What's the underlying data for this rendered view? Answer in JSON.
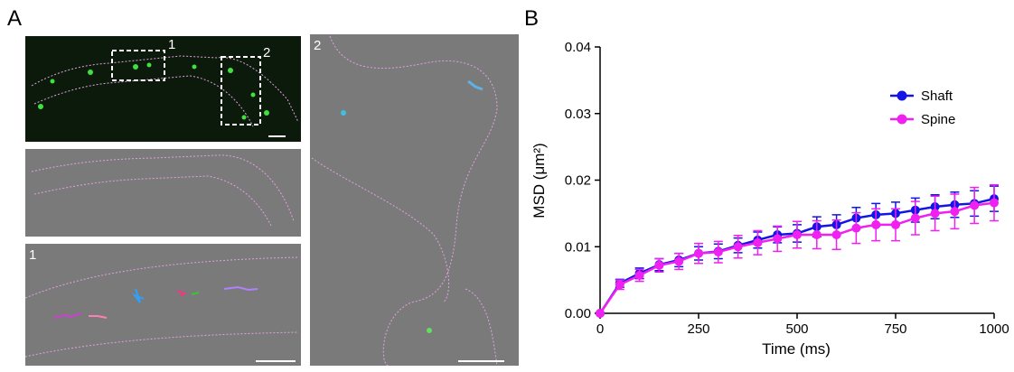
{
  "panel_labels": [
    "A",
    "B"
  ],
  "roi_labels": [
    "1",
    "2",
    "1",
    "2"
  ],
  "chart_data": {
    "type": "line",
    "x_label": "Time (ms)",
    "y_label": "MSD (μm²)",
    "x": [
      0,
      50,
      100,
      150,
      200,
      250,
      300,
      350,
      400,
      450,
      500,
      550,
      600,
      650,
      700,
      750,
      800,
      850,
      900,
      950,
      1000
    ],
    "series": [
      {
        "name": "Shaft",
        "color": "#1414e6",
        "values": [
          0,
          0.0045,
          0.006,
          0.0073,
          0.008,
          0.009,
          0.0093,
          0.0102,
          0.011,
          0.0118,
          0.012,
          0.013,
          0.0133,
          0.0143,
          0.0148,
          0.015,
          0.0155,
          0.016,
          0.0163,
          0.0165,
          0.0172
        ],
        "errors": [
          0,
          0.0006,
          0.0008,
          0.0009,
          0.001,
          0.001,
          0.0011,
          0.0011,
          0.0012,
          0.0012,
          0.0013,
          0.0015,
          0.0015,
          0.0016,
          0.0017,
          0.0017,
          0.0018,
          0.0018,
          0.0019,
          0.0019,
          0.0019
        ]
      },
      {
        "name": "Spine",
        "color": "#f020f0",
        "values": [
          0,
          0.0043,
          0.0057,
          0.0072,
          0.0078,
          0.009,
          0.0092,
          0.01,
          0.0106,
          0.0112,
          0.0118,
          0.0118,
          0.0118,
          0.0128,
          0.0133,
          0.0133,
          0.0143,
          0.015,
          0.0153,
          0.0162,
          0.0166
        ],
        "errors": [
          0,
          0.0007,
          0.0009,
          0.001,
          0.0012,
          0.0015,
          0.0016,
          0.0017,
          0.0018,
          0.0019,
          0.002,
          0.0021,
          0.0022,
          0.0023,
          0.0024,
          0.0024,
          0.0025,
          0.0026,
          0.0026,
          0.0027,
          0.0027
        ]
      }
    ],
    "xlim": [
      0,
      1000
    ],
    "xticks": [
      0,
      250,
      500,
      750,
      1000
    ],
    "ylim": [
      0,
      0.04
    ],
    "yticks": [
      {
        "value": 0,
        "label": "0.00"
      },
      {
        "value": 0.01,
        "label": "0.01"
      },
      {
        "value": 0.02,
        "label": "0.02"
      },
      {
        "value": 0.03,
        "label": "0.03"
      },
      {
        "value": 0.04,
        "label": "0.04"
      }
    ],
    "legend": "upper right",
    "grid": false
  }
}
